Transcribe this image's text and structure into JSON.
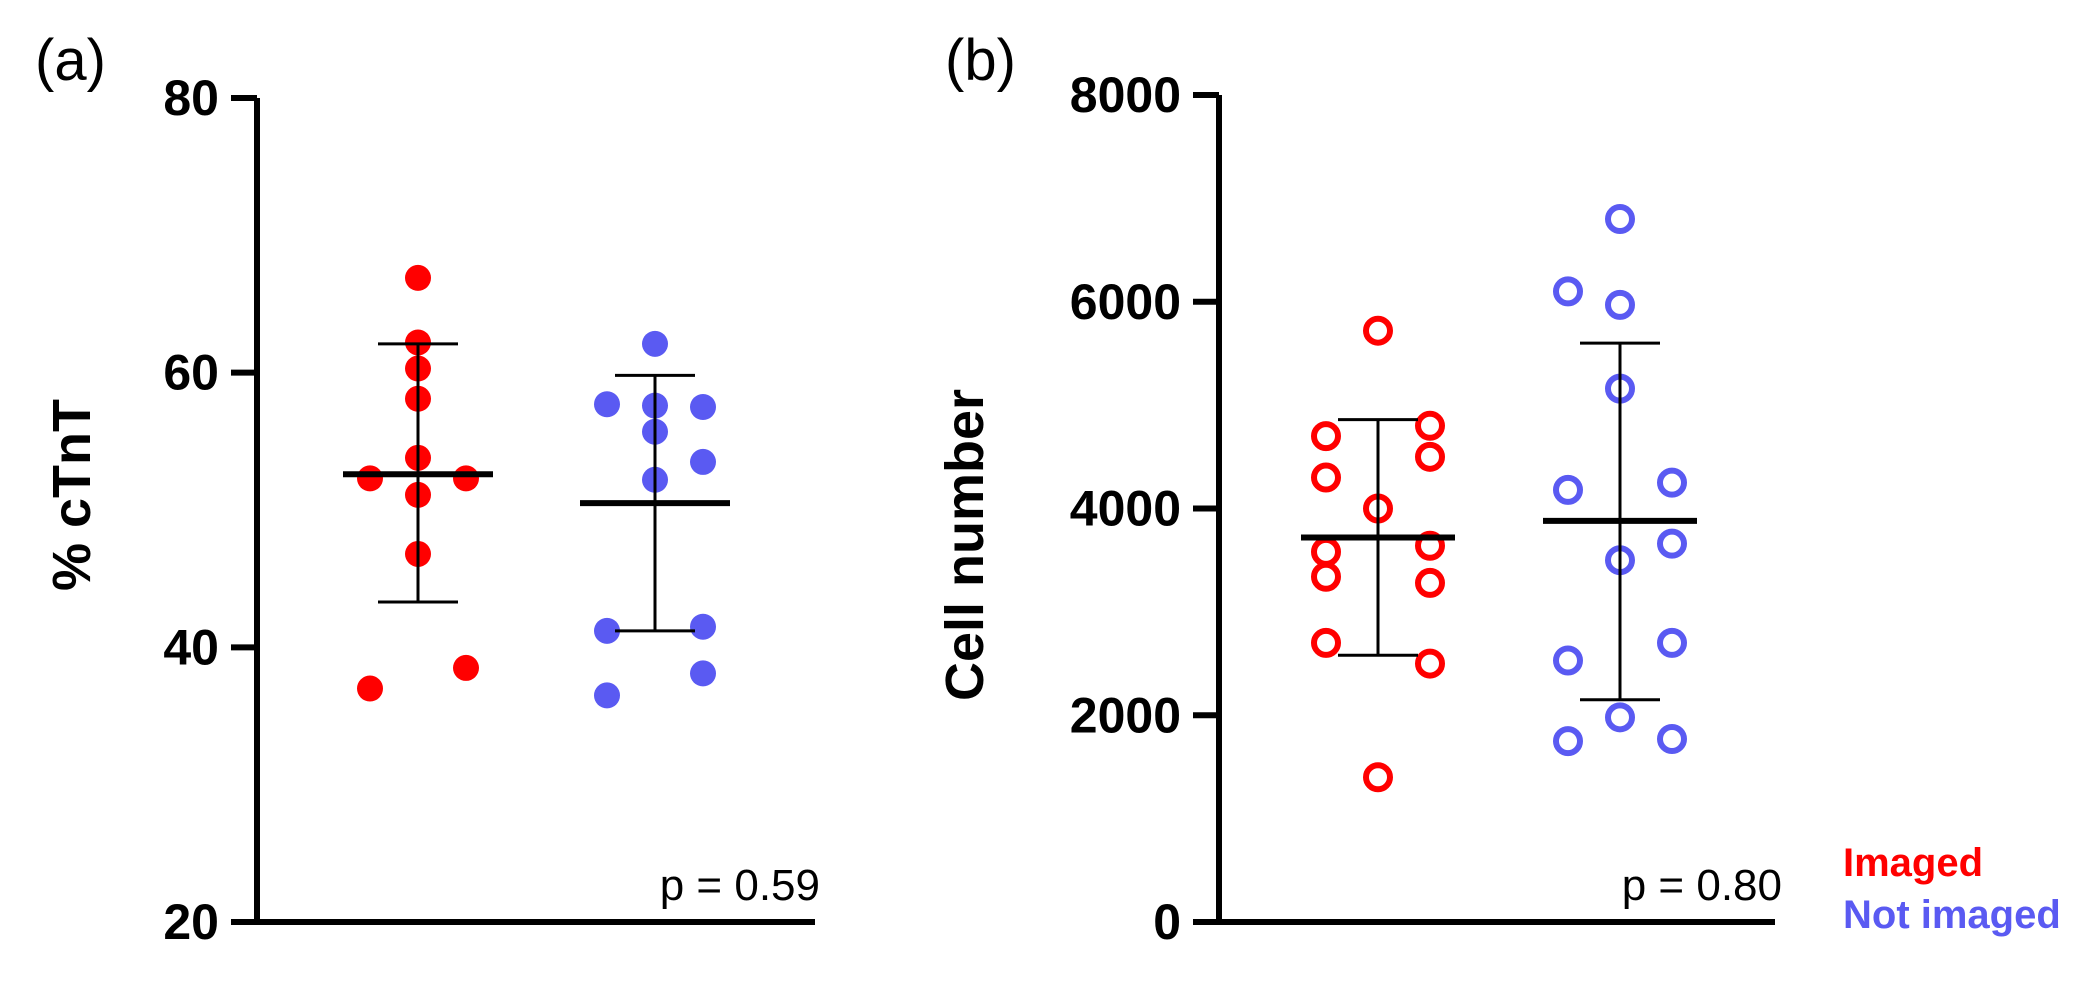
{
  "colors": {
    "imaged": "#ff0000",
    "not_imaged": "#5a5af2",
    "axis": "#000000"
  },
  "legend": [
    {
      "label": "Imaged",
      "color": "#ff0000"
    },
    {
      "label": "Not imaged",
      "color": "#5a5af2"
    }
  ],
  "chart_data": [
    {
      "panel": "(a)",
      "type": "scatter",
      "marker": "filled",
      "ylabel": "% cTnT",
      "ylim": [
        20,
        80
      ],
      "yticks": [
        20,
        40,
        60,
        80
      ],
      "annotation": "p = 0.59",
      "groups": [
        {
          "name": "Imaged",
          "color": "#ff0000",
          "mean": 52.6,
          "sd_low": 43.3,
          "sd_high": 62.1,
          "points": [
            [
              0,
              66.9
            ],
            [
              0,
              62.2
            ],
            [
              0,
              60.3
            ],
            [
              0,
              58.1
            ],
            [
              0,
              53.8
            ],
            [
              -1,
              52.3
            ],
            [
              1,
              52.3
            ],
            [
              0,
              51.1
            ],
            [
              0,
              46.8
            ],
            [
              1,
              38.5
            ],
            [
              -1,
              37.0
            ]
          ]
        },
        {
          "name": "Not imaged",
          "color": "#5a5af2",
          "mean": 50.5,
          "sd_low": 41.2,
          "sd_high": 59.8,
          "points": [
            [
              0,
              62.1
            ],
            [
              -1,
              57.7
            ],
            [
              1,
              57.5
            ],
            [
              0,
              57.6
            ],
            [
              0,
              55.7
            ],
            [
              1,
              53.5
            ],
            [
              0,
              52.2
            ],
            [
              -1,
              41.2
            ],
            [
              1,
              41.5
            ],
            [
              -1,
              36.5
            ],
            [
              1,
              38.1
            ]
          ]
        }
      ]
    },
    {
      "panel": "(b)",
      "type": "scatter",
      "marker": "open",
      "ylabel": "Cell number",
      "ylim": [
        0,
        8000
      ],
      "yticks": [
        0,
        2000,
        4000,
        6000,
        8000
      ],
      "annotation": "p = 0.80",
      "groups": [
        {
          "name": "Imaged",
          "color": "#ff0000",
          "mean": 3720,
          "sd_low": 2580,
          "sd_high": 4860,
          "points": [
            [
              0,
              5720
            ],
            [
              1,
              4800
            ],
            [
              -1,
              4700
            ],
            [
              1,
              4500
            ],
            [
              -1,
              4300
            ],
            [
              0,
              4000
            ],
            [
              -1,
              3580
            ],
            [
              1,
              3640
            ],
            [
              -1,
              3340
            ],
            [
              1,
              3280
            ],
            [
              -1,
              2700
            ],
            [
              1,
              2500
            ],
            [
              0,
              1400
            ]
          ]
        },
        {
          "name": "Not imaged",
          "color": "#5a5af2",
          "mean": 3880,
          "sd_low": 2150,
          "sd_high": 5600,
          "points": [
            [
              0,
              6800
            ],
            [
              -1,
              6100
            ],
            [
              0,
              5970
            ],
            [
              0,
              5160
            ],
            [
              -1,
              4180
            ],
            [
              1,
              4250
            ],
            [
              1,
              3660
            ],
            [
              0,
              3500
            ],
            [
              1,
              2700
            ],
            [
              -1,
              2530
            ],
            [
              0,
              1980
            ],
            [
              -1,
              1750
            ],
            [
              1,
              1770
            ]
          ]
        }
      ]
    }
  ]
}
